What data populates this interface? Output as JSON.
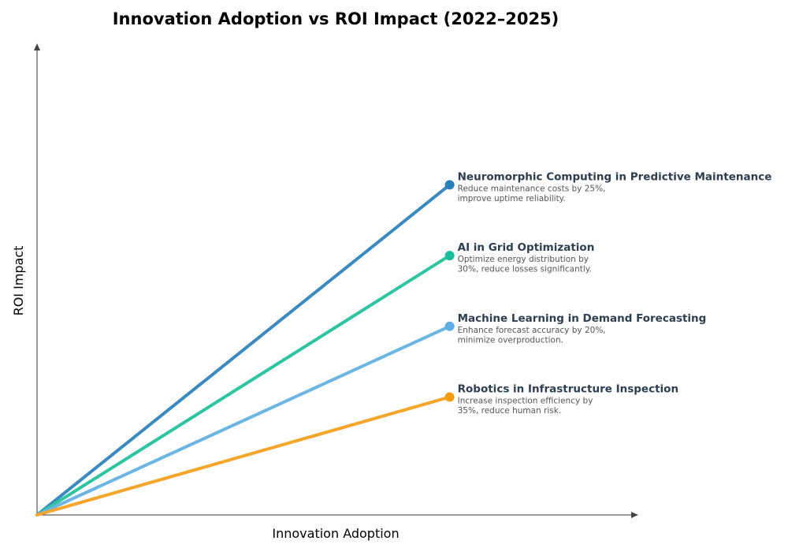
{
  "chart_data": {
    "type": "line",
    "title": "Innovation Adoption vs ROI Impact (2022–2025)",
    "xlabel": "Innovation Adoption",
    "ylabel": "ROI Impact",
    "xlim": [
      0,
      1.02
    ],
    "ylim": [
      0,
      1
    ],
    "grid": false,
    "ticks": false,
    "series": [
      {
        "name": "Neuromorphic Computing in Predictive Maintenance",
        "description": [
          "Reduce maintenance costs by 25%,",
          "improve uptime reliability."
        ],
        "x": [
          0,
          0.7
        ],
        "y": [
          0,
          0.7
        ],
        "color": "#2980b9",
        "line_color": "#3a8ac0"
      },
      {
        "name": "AI in Grid Optimization",
        "description": [
          "Optimize energy distribution by",
          "30%, reduce losses significantly."
        ],
        "x": [
          0,
          0.7
        ],
        "y": [
          0,
          0.55
        ],
        "color": "#1abc9c",
        "line_color": "#2ec4a0"
      },
      {
        "name": "Machine Learning in Demand Forecasting",
        "description": [
          "Enhance forecast accuracy by 20%,",
          "minimize overproduction."
        ],
        "x": [
          0,
          0.7
        ],
        "y": [
          0,
          0.4
        ],
        "color": "#5dade2",
        "line_color": "#6bb5e5"
      },
      {
        "name": "Robotics in Infrastructure Inspection",
        "description": [
          "Increase inspection efficiency by",
          "35%, reduce human risk."
        ],
        "x": [
          0,
          0.7
        ],
        "y": [
          0,
          0.25
        ],
        "color": "#f39c12",
        "line_color": "#f4a52a"
      }
    ]
  }
}
